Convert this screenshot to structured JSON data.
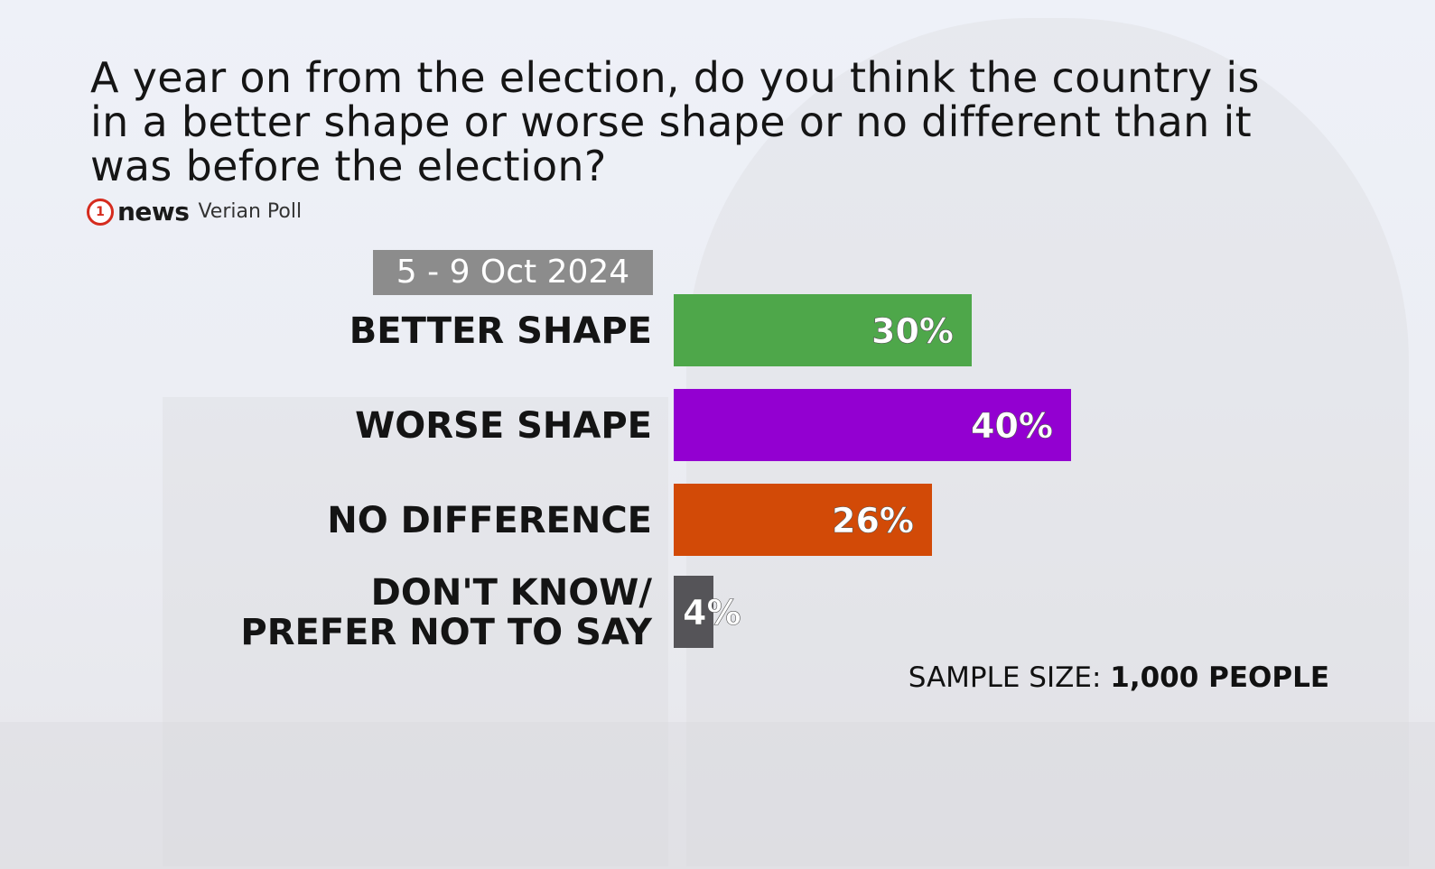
{
  "question": "A year on from the election, do you think the country is in a better shape or worse shape or no different than it was before the election?",
  "logo": {
    "mark": "1",
    "brand": "news",
    "poll": "Verian Poll"
  },
  "date_range": "5 - 9 Oct 2024",
  "sample": {
    "label": "SAMPLE SIZE:",
    "value": "1,000 PEOPLE"
  },
  "chart_data": {
    "type": "bar",
    "orientation": "horizontal",
    "categories": [
      [
        "BETTER SHAPE"
      ],
      [
        "WORSE SHAPE"
      ],
      [
        "NO DIFFERENCE"
      ],
      [
        "DON'T KNOW/",
        "PREFER NOT TO SAY"
      ]
    ],
    "values": [
      30,
      40,
      26,
      4
    ],
    "value_labels": [
      "30%",
      "40%",
      "26%",
      "4%"
    ],
    "colors": [
      "#4ea74a",
      "#9300d1",
      "#d24a07",
      "#555458"
    ],
    "xlim": [
      0,
      100
    ]
  }
}
